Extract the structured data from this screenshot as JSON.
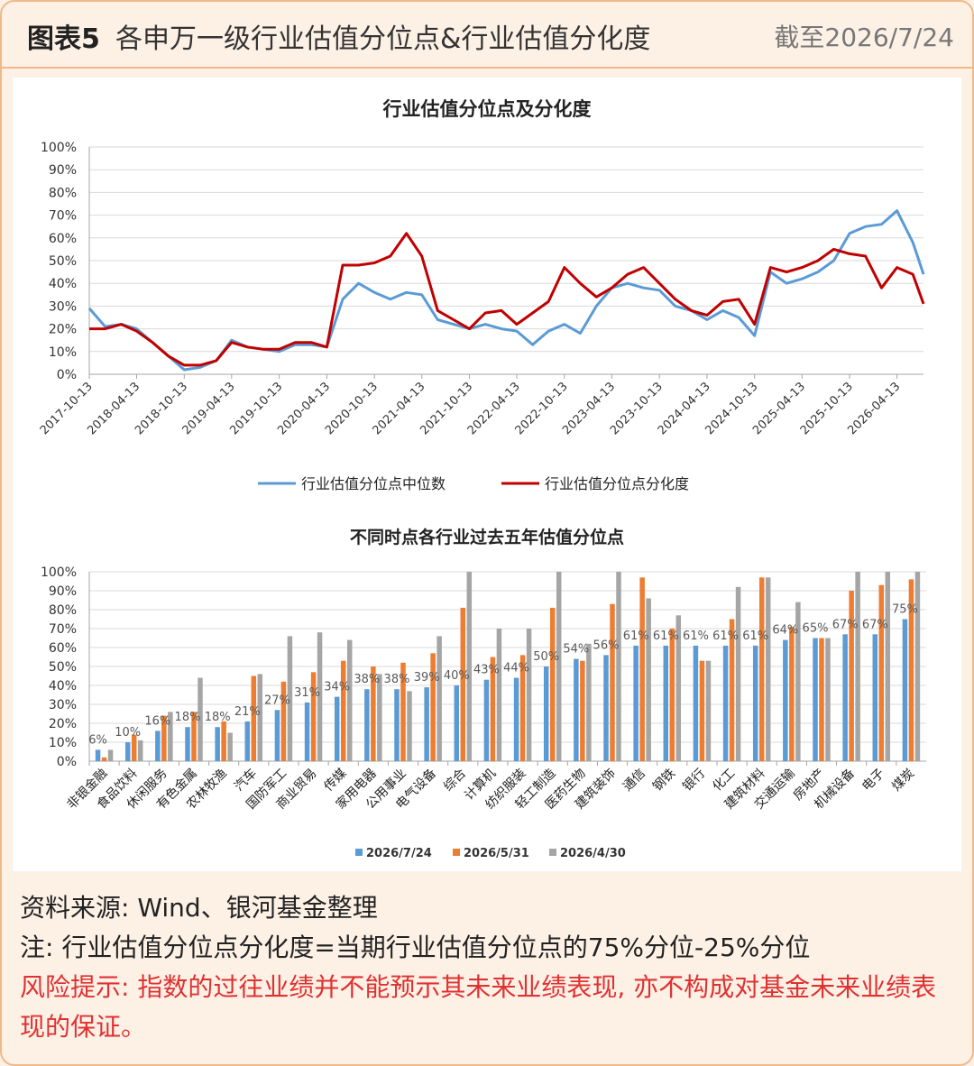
{
  "header": {
    "title_strong": "图表5",
    "title_rest": "各申万一级行业估值分位点&行业估值分化度",
    "date": "截至2026/7/24"
  },
  "colors": {
    "median": "#5b9bd5",
    "dispersion": "#c00000",
    "bar1": "#5b9bd5",
    "bar2": "#ed7d31",
    "bar3": "#a5a5a5"
  },
  "chart_data": [
    {
      "type": "line",
      "title": "行业估值分位点及分化度",
      "x_ticks": [
        "2017-10-13",
        "2018-04-13",
        "2018-10-13",
        "2019-04-13",
        "2019-10-13",
        "2020-04-13",
        "2020-10-13",
        "2021-04-13",
        "2021-10-13",
        "2022-04-13",
        "2022-10-13",
        "2023-04-13",
        "2023-10-13",
        "2024-04-13",
        "2024-10-13",
        "2025-04-13",
        "2025-10-13",
        "2026-04-13"
      ],
      "y_ticks": [
        "0%",
        "10%",
        "20%",
        "30%",
        "40%",
        "50%",
        "60%",
        "70%",
        "80%",
        "90%",
        "100%"
      ],
      "ylim": [
        0,
        100
      ],
      "x": [
        "2017-10-13",
        "2017-12-13",
        "2018-02-13",
        "2018-04-13",
        "2018-06-13",
        "2018-08-13",
        "2018-10-13",
        "2018-12-13",
        "2019-02-13",
        "2019-04-13",
        "2019-06-13",
        "2019-08-13",
        "2019-10-13",
        "2019-12-13",
        "2020-02-13",
        "2020-04-13",
        "2020-06-13",
        "2020-08-13",
        "2020-10-13",
        "2020-12-13",
        "2021-02-13",
        "2021-04-13",
        "2021-06-13",
        "2021-08-13",
        "2021-10-13",
        "2021-12-13",
        "2022-02-13",
        "2022-04-13",
        "2022-06-13",
        "2022-08-13",
        "2022-10-13",
        "2022-12-13",
        "2023-02-13",
        "2023-04-13",
        "2023-06-13",
        "2023-08-13",
        "2023-10-13",
        "2023-12-13",
        "2024-02-13",
        "2024-04-13",
        "2024-06-13",
        "2024-08-13",
        "2024-10-13",
        "2024-12-13",
        "2025-02-13",
        "2025-04-13",
        "2025-06-13",
        "2025-08-13",
        "2025-10-13",
        "2025-12-13",
        "2026-02-13",
        "2026-04-13",
        "2026-06-13",
        "2026-07-24"
      ],
      "series": [
        {
          "name": "行业估值分位点中位数",
          "values": [
            29,
            21,
            22,
            20,
            14,
            8,
            2,
            3,
            6,
            15,
            12,
            11,
            10,
            13,
            13,
            12,
            33,
            40,
            36,
            33,
            36,
            35,
            24,
            22,
            20,
            22,
            20,
            19,
            13,
            19,
            22,
            18,
            30,
            38,
            40,
            38,
            37,
            30,
            28,
            24,
            28,
            25,
            17,
            45,
            40,
            42,
            45,
            50,
            62,
            65,
            66,
            72,
            58,
            44
          ]
        },
        {
          "name": "行业估值分位点分化度",
          "values": [
            20,
            20,
            22,
            19,
            14,
            8,
            4,
            4,
            6,
            14,
            12,
            11,
            11,
            14,
            14,
            12,
            48,
            48,
            49,
            52,
            62,
            52,
            28,
            24,
            20,
            27,
            28,
            22,
            27,
            32,
            47,
            40,
            34,
            38,
            44,
            47,
            40,
            33,
            28,
            26,
            32,
            33,
            22,
            47,
            45,
            47,
            50,
            55,
            53,
            52,
            38,
            47,
            44,
            31
          ]
        }
      ]
    },
    {
      "type": "bar",
      "title": "不同时点各行业过去五年估值分位点",
      "y_ticks": [
        "0%",
        "10%",
        "20%",
        "30%",
        "40%",
        "50%",
        "60%",
        "70%",
        "80%",
        "90%",
        "100%"
      ],
      "ylim": [
        0,
        100
      ],
      "categories": [
        "非银金融",
        "食品饮料",
        "休闲服务",
        "有色金属",
        "农林牧渔",
        "汽车",
        "国防军工",
        "商业贸易",
        "传媒",
        "家用电器",
        "公用事业",
        "电气设备",
        "综合",
        "计算机",
        "纺织服装",
        "轻工制造",
        "医药生物",
        "建筑装饰",
        "通信",
        "钢铁",
        "银行",
        "化工",
        "建筑材料",
        "交通运输",
        "房地产",
        "机械设备",
        "电子",
        "煤炭"
      ],
      "labels": [
        "6%",
        "10%",
        "16%",
        "18%",
        "18%",
        "21%",
        "27%",
        "31%",
        "34%",
        "38%",
        "38%",
        "39%",
        "40%",
        "43%",
        "44%",
        "50%",
        "54%",
        "56%",
        "61%",
        "61%",
        "61%",
        "61%",
        "61%",
        "64%",
        "65%",
        "67%",
        "67%",
        "75%"
      ],
      "series": [
        {
          "name": "2026/7/24",
          "values": [
            6,
            10,
            16,
            18,
            18,
            21,
            27,
            31,
            34,
            38,
            38,
            39,
            40,
            43,
            44,
            50,
            54,
            56,
            61,
            61,
            61,
            61,
            61,
            64,
            65,
            67,
            67,
            75
          ]
        },
        {
          "name": "2026/5/31",
          "values": [
            2,
            14,
            24,
            26,
            21,
            45,
            42,
            47,
            53,
            50,
            52,
            57,
            81,
            55,
            56,
            81,
            53,
            83,
            97,
            70,
            53,
            75,
            97,
            71,
            65,
            90,
            93,
            96
          ]
        },
        {
          "name": "2026/4/30",
          "values": [
            6,
            11,
            26,
            44,
            15,
            46,
            66,
            68,
            64,
            46,
            37,
            66,
            100,
            70,
            70,
            100,
            62,
            100,
            86,
            77,
            53,
            92,
            97,
            84,
            65,
            100,
            100,
            100
          ]
        }
      ]
    }
  ],
  "notes": {
    "source": "资料来源: Wind、银河基金整理",
    "note": "注: 行业估值分位点分化度=当期行业估值分位点的75%分位-25%分位",
    "risk": "风险提示: 指数的过往业绩并不能预示其未来业绩表现, 亦不构成对基金未来业绩表现的保证。"
  }
}
